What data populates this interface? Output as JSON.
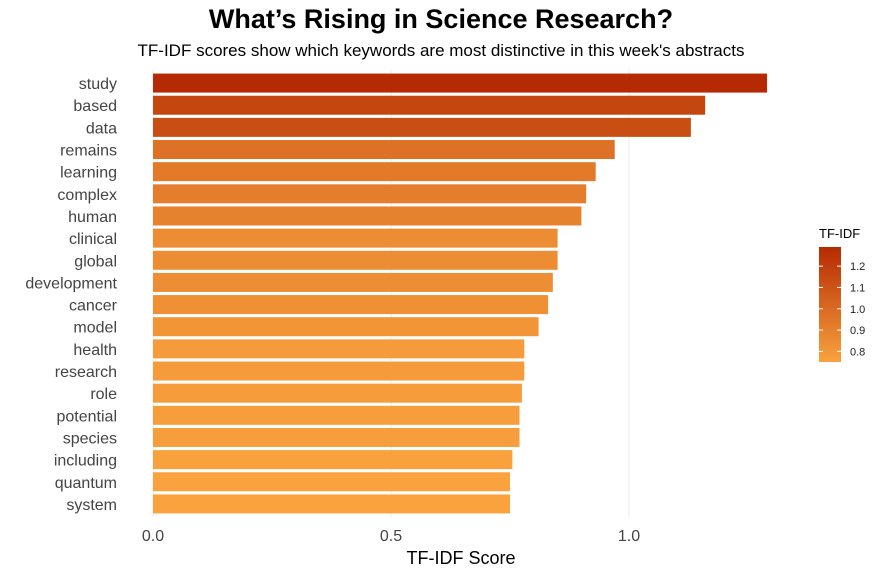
{
  "chart_data": {
    "type": "bar",
    "orientation": "horizontal",
    "title": "What’s Rising in Science Research?",
    "subtitle": "TF-IDF scores show which keywords are most distinctive in this week's abstracts",
    "xlabel": "TF-IDF Score",
    "ylabel": "",
    "categories": [
      "study",
      "based",
      "data",
      "remains",
      "learning",
      "complex",
      "human",
      "clinical",
      "global",
      "development",
      "cancer",
      "model",
      "health",
      "research",
      "role",
      "potential",
      "species",
      "including",
      "quantum",
      "system"
    ],
    "values": [
      1.29,
      1.16,
      1.13,
      0.97,
      0.93,
      0.91,
      0.9,
      0.85,
      0.85,
      0.84,
      0.83,
      0.81,
      0.78,
      0.78,
      0.775,
      0.77,
      0.77,
      0.755,
      0.75,
      0.75
    ],
    "xlim": [
      0,
      1.35
    ],
    "xticks": [
      "0.0",
      "0.5",
      "1.0"
    ],
    "xtick_values": [
      0,
      0.5,
      1.0
    ],
    "grid": "vertical",
    "legend": {
      "title": "TF-IDF",
      "position": "right",
      "ticks": [
        "1.2",
        "1.1",
        "1.0",
        "0.9",
        "0.8"
      ],
      "tick_values": [
        1.2,
        1.1,
        1.0,
        0.9,
        0.8
      ],
      "range": [
        0.75,
        1.29
      ]
    },
    "colors": {
      "low": "#f9a23e",
      "high": "#b52a02"
    }
  }
}
